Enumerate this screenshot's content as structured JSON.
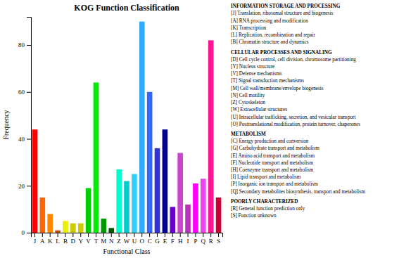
{
  "chart_data": {
    "type": "bar",
    "title": "KOG Function Classification",
    "xlabel": "Functional Class",
    "ylabel": "Frequency",
    "categories": [
      "J",
      "A",
      "K",
      "L",
      "B",
      "D",
      "Y",
      "V",
      "T",
      "M",
      "N",
      "Z",
      "W",
      "U",
      "O",
      "C",
      "G",
      "E",
      "F",
      "H",
      "I",
      "P",
      "Q",
      "R",
      "S"
    ],
    "values": [
      44,
      15,
      8,
      1,
      5,
      4,
      4,
      19,
      64,
      6,
      2,
      27,
      22,
      25,
      90,
      60,
      36,
      44,
      11,
      34,
      12,
      21,
      23,
      82,
      15
    ],
    "colors": [
      "#ff0000",
      "#ff6600",
      "#ff8800",
      "#cc4400",
      "#eeee00",
      "#cccc00",
      "#cccc00",
      "#00cc00",
      "#00ee00",
      "#009900",
      "#005500",
      "#00ffcc",
      "#00cccc",
      "#33ccff",
      "#33aaff",
      "#3366ff",
      "#3333cc",
      "#000099",
      "#6600cc",
      "#cc44cc",
      "#bb33bb",
      "#ff00ff",
      "#ee44ee",
      "#ff1493",
      "#cc0033"
    ],
    "ylim": [
      0,
      92
    ],
    "yticks": [
      0,
      20,
      40,
      60,
      80
    ],
    "grid": false,
    "annotations": [
      {
        "title": "INFORMATION STORAGE AND PROCESSING",
        "items": [
          "[J] Translation, ribosomal structure and biogenesis",
          "[A] RNA processing and modification",
          "[K] Transcription",
          "[L] Replication, recombination and repair",
          "[B] Chromatin structure and dynamics"
        ]
      },
      {
        "title": "CELLULAR PROCESSES AND SIGNALING",
        "items": [
          "[D] Cell cycle control, cell division, chromosome partitioning",
          "[Y] Nucleus structure",
          "[V] Defense mechanisms",
          "[T] Signal transduction mechanisms",
          "[M] Cell wall/membrane/envelope biogenesis",
          "[N] Cell motility",
          "[Z] Cytoskeleton",
          "[W] Extracellular structures",
          "[U] Intracellular trafficking, secretion, and vesicular transport",
          "[O] Posttranslational modification, protein turnover, chaperones"
        ]
      },
      {
        "title": "METABOLISM",
        "items": [
          "[C] Energy production and conversion",
          "[G] Carbohydrate transport and metabolism",
          "[E] Amino acid transport and metabolism",
          "[F] Nucleotide transport and metabolism",
          "[H] Coenzyme transport and metabolism",
          "[I] Lipid transport and metabolism",
          "[P] Inorganic ion transport and metabolism",
          "[Q] Secondary metabolites biosynthesis, transport and metabolism"
        ]
      },
      {
        "title": "POORLY CHARACTERIZED",
        "items": [
          "[R] General function prediction only",
          "[S] Function unknown"
        ]
      }
    ]
  }
}
